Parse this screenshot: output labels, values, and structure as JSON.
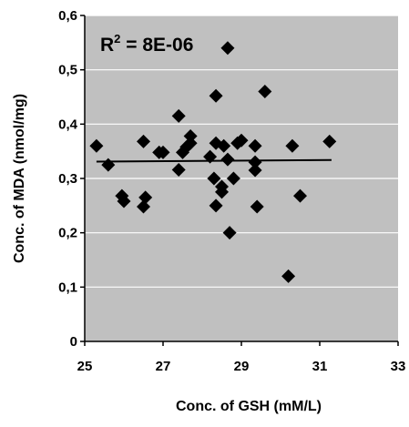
{
  "chart_data": {
    "type": "scatter",
    "xlabel": "Conc. of GSH (mM/L)",
    "ylabel": "Conc. of MDA (nmol/mg)",
    "xlim": [
      25,
      33
    ],
    "ylim": [
      0,
      0.6
    ],
    "x_ticks": [
      "25",
      "27",
      "29",
      "31",
      "33"
    ],
    "y_ticks": [
      "0",
      "0,1",
      "0,2",
      "0,3",
      "0,4",
      "0,5",
      "0,6"
    ],
    "annotation": {
      "prefix": "R",
      "superscript": "2",
      "suffix": " = 8E-06"
    },
    "background_color": "#c0c0c0",
    "gridlines": true,
    "gridline_color": "#ffffff",
    "marker": "diamond",
    "marker_color": "#000000",
    "trendline": {
      "type": "linear",
      "x": [
        25.3,
        31.3
      ],
      "y": [
        0.331,
        0.334
      ]
    },
    "series": [
      {
        "points": [
          [
            25.3,
            0.36
          ],
          [
            25.6,
            0.325
          ],
          [
            25.95,
            0.268
          ],
          [
            26.0,
            0.258
          ],
          [
            26.5,
            0.368
          ],
          [
            26.5,
            0.248
          ],
          [
            26.55,
            0.265
          ],
          [
            26.9,
            0.348
          ],
          [
            27.0,
            0.348
          ],
          [
            27.4,
            0.415
          ],
          [
            27.4,
            0.316
          ],
          [
            27.5,
            0.348
          ],
          [
            27.6,
            0.358
          ],
          [
            27.7,
            0.365
          ],
          [
            27.7,
            0.378
          ],
          [
            28.2,
            0.34
          ],
          [
            28.3,
            0.3
          ],
          [
            28.35,
            0.452
          ],
          [
            28.35,
            0.365
          ],
          [
            28.35,
            0.25
          ],
          [
            28.5,
            0.275
          ],
          [
            28.5,
            0.285
          ],
          [
            28.55,
            0.36
          ],
          [
            28.65,
            0.54
          ],
          [
            28.65,
            0.335
          ],
          [
            28.7,
            0.2
          ],
          [
            28.8,
            0.3
          ],
          [
            28.9,
            0.365
          ],
          [
            29.0,
            0.37
          ],
          [
            29.35,
            0.36
          ],
          [
            29.35,
            0.33
          ],
          [
            29.35,
            0.315
          ],
          [
            29.4,
            0.248
          ],
          [
            29.6,
            0.46
          ],
          [
            30.2,
            0.12
          ],
          [
            30.3,
            0.36
          ],
          [
            30.5,
            0.268
          ],
          [
            31.25,
            0.368
          ]
        ]
      }
    ]
  }
}
